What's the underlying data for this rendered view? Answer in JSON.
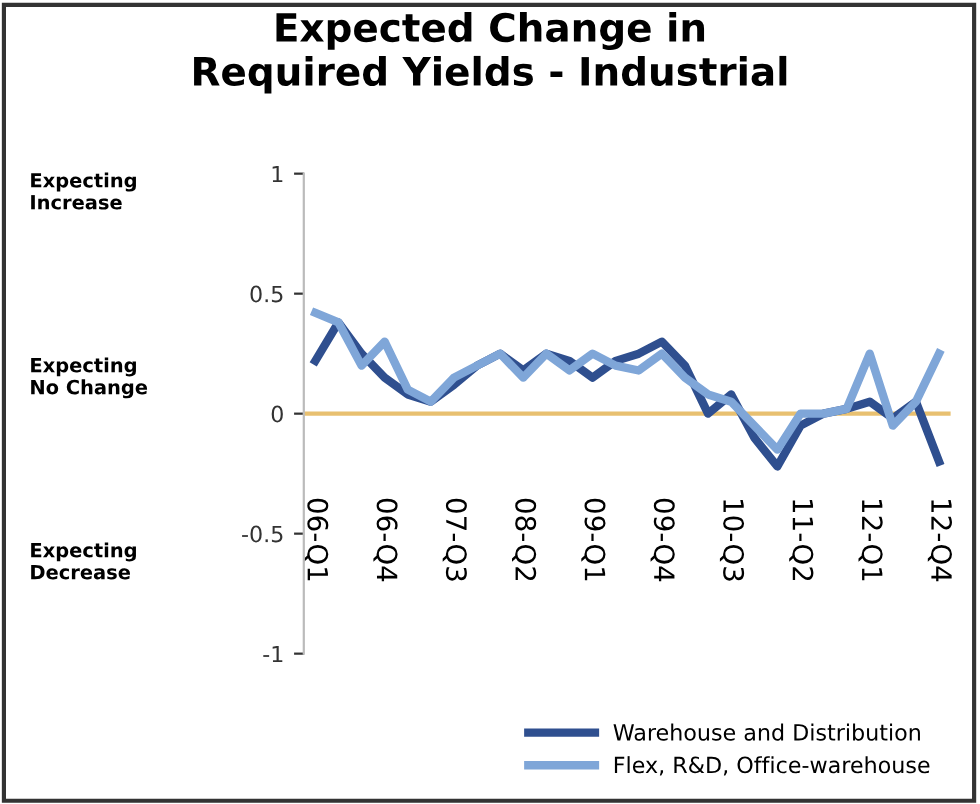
{
  "chart_data": {
    "type": "line",
    "title": "Expected Change in\nRequired Yields - Industrial",
    "categories": [
      "06-Q1",
      null,
      null,
      "06-Q4",
      null,
      null,
      "07-Q3",
      null,
      null,
      "08-Q2",
      null,
      null,
      "09-Q1",
      null,
      null,
      "09-Q4",
      null,
      null,
      "10-Q3",
      null,
      null,
      "11-Q2",
      null,
      null,
      "12-Q1",
      null,
      null,
      "12-Q4"
    ],
    "series": [
      {
        "name": "Warehouse and Distribution",
        "color": "#2f4f8f",
        "values": [
          0.22,
          0.38,
          0.25,
          0.15,
          0.08,
          0.05,
          0.12,
          0.2,
          0.25,
          0.18,
          0.25,
          0.22,
          0.15,
          0.22,
          0.25,
          0.3,
          0.2,
          0.0,
          0.08,
          -0.1,
          -0.22,
          -0.05,
          0.0,
          0.02,
          0.05,
          -0.02,
          0.05,
          -0.2
        ]
      },
      {
        "name": "Flex, R&D, Office-warehouse",
        "color": "#7fa6d8",
        "values": [
          0.42,
          0.38,
          0.2,
          0.3,
          0.1,
          0.05,
          0.15,
          0.2,
          0.25,
          0.15,
          0.25,
          0.18,
          0.25,
          0.2,
          0.18,
          0.25,
          0.15,
          0.08,
          0.05,
          -0.05,
          -0.15,
          0.0,
          0.0,
          0.02,
          0.25,
          -0.05,
          0.05,
          0.25
        ]
      }
    ],
    "ylim": [
      -1,
      1
    ],
    "yticks": [
      -1,
      -0.5,
      0,
      0.5,
      1
    ],
    "grid": false,
    "ref_lines": [
      {
        "axis": "y",
        "value": 0,
        "color": "#e8c070"
      }
    ],
    "legend": "bottom right",
    "marker": "none",
    "line_style": "solid",
    "annotations": [
      "Expecting\nIncrease",
      "Expecting\nNo Change",
      "Expecting\nDecrease"
    ]
  }
}
